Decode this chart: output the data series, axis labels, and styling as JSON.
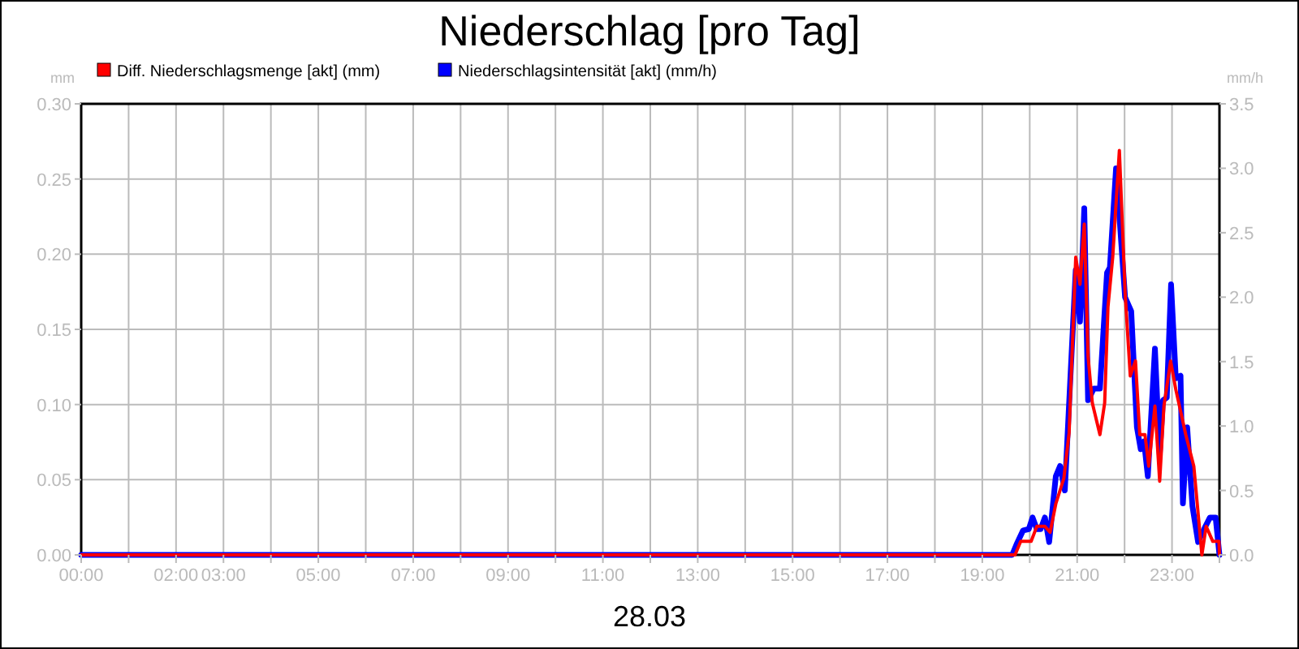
{
  "chart_data": {
    "type": "line",
    "title": "Niederschlag [pro Tag]",
    "ylabel": "mm",
    "y2label": "mm/h",
    "annotations": [
      "28.03"
    ],
    "xlim": [
      0,
      24
    ],
    "xticks": [
      {
        "value": 0,
        "label": "00:00"
      },
      {
        "value": 1,
        "label": null
      },
      {
        "value": 2,
        "label": "02:00"
      },
      {
        "value": 3,
        "label": "03:00"
      },
      {
        "value": 4,
        "label": null
      },
      {
        "value": 5,
        "label": "05:00"
      },
      {
        "value": 6,
        "label": null
      },
      {
        "value": 7,
        "label": "07:00"
      },
      {
        "value": 8,
        "label": null
      },
      {
        "value": 9,
        "label": "09:00"
      },
      {
        "value": 10,
        "label": null
      },
      {
        "value": 11,
        "label": "11:00"
      },
      {
        "value": 12,
        "label": null
      },
      {
        "value": 13,
        "label": "13:00"
      },
      {
        "value": 14,
        "label": null
      },
      {
        "value": 15,
        "label": "15:00"
      },
      {
        "value": 16,
        "label": null
      },
      {
        "value": 17,
        "label": "17:00"
      },
      {
        "value": 18,
        "label": null
      },
      {
        "value": 19,
        "label": "19:00"
      },
      {
        "value": 20,
        "label": null
      },
      {
        "value": 21,
        "label": "21:00"
      },
      {
        "value": 22,
        "label": null
      },
      {
        "value": 23,
        "label": "23:00"
      },
      {
        "value": 24,
        "label": null
      }
    ],
    "ylim": [
      0,
      0.3
    ],
    "yticks": [
      {
        "value": 0,
        "label": "0.00"
      },
      {
        "value": 0.05,
        "label": "0.05"
      },
      {
        "value": 0.1,
        "label": "0.10"
      },
      {
        "value": 0.15,
        "label": "0.15"
      },
      {
        "value": 0.2,
        "label": "0.20"
      },
      {
        "value": 0.25,
        "label": "0.25"
      },
      {
        "value": 0.3,
        "label": "0.30"
      }
    ],
    "y2lim": [
      0,
      3.5
    ],
    "y2ticks": [
      {
        "value": 0,
        "label": "0.0"
      },
      {
        "value": 0.5,
        "label": "0.5"
      },
      {
        "value": 1,
        "label": "1.0"
      },
      {
        "value": 1.5,
        "label": "1.5"
      },
      {
        "value": 2,
        "label": "2.0"
      },
      {
        "value": 2.5,
        "label": "2.5"
      },
      {
        "value": 3,
        "label": "3.0"
      },
      {
        "value": 3.5,
        "label": "3.5"
      }
    ],
    "grid": true,
    "legend": "top left",
    "marker": "none",
    "line_style": "solid",
    "series": [
      {
        "name": "Diff. Niederschlagsmenge [akt] (mm)",
        "color": "#ff0000",
        "x": [
          0,
          19.69,
          19.81,
          20.03,
          20.15,
          20.32,
          20.43,
          20.55,
          20.72,
          20.83,
          20.97,
          21.06,
          21.15,
          21.23,
          21.32,
          21.48,
          21.58,
          21.65,
          21.75,
          21.89,
          22.01,
          22.12,
          22.23,
          22.32,
          22.43,
          22.51,
          22.64,
          22.74,
          22.83,
          22.97,
          23.08,
          23.29,
          23.46,
          23.63,
          23.72,
          23.86,
          23.99,
          24
        ],
        "values": [
          0,
          0,
          0.009,
          0.009,
          0.019,
          0.019,
          0.015,
          0.034,
          0.051,
          0.081,
          0.198,
          0.18,
          0.22,
          0.132,
          0.101,
          0.08,
          0.101,
          0.165,
          0.198,
          0.269,
          0.175,
          0.119,
          0.129,
          0.08,
          0.08,
          0.059,
          0.099,
          0.049,
          0.099,
          0.129,
          0.11,
          0.08,
          0.059,
          0,
          0.019,
          0.009,
          0.009,
          0
        ]
      },
      {
        "name": "Niederschlagsintensität [akt] (mm/h)",
        "color": "#0000ff",
        "axis": "y2",
        "x": [
          0,
          19.63,
          19.72,
          19.86,
          19.98,
          20.06,
          20.15,
          20.23,
          20.32,
          20.41,
          20.55,
          20.64,
          20.74,
          20.87,
          20.97,
          21.06,
          21.15,
          21.23,
          21.35,
          21.48,
          21.63,
          21.69,
          21.82,
          22.01,
          22.14,
          22.26,
          22.34,
          22.41,
          22.49,
          22.64,
          22.74,
          22.81,
          22.89,
          22.98,
          23.08,
          23.18,
          23.23,
          23.32,
          23.43,
          23.55,
          23.69,
          23.8,
          23.92,
          24
        ],
        "values": [
          0,
          0,
          0.08,
          0.19,
          0.2,
          0.29,
          0.2,
          0.2,
          0.29,
          0.1,
          0.61,
          0.69,
          0.5,
          1.47,
          2.21,
          1.81,
          2.69,
          1.2,
          1.29,
          1.29,
          2.19,
          2.23,
          3.0,
          2.0,
          1.89,
          0.99,
          0.82,
          0.88,
          0.61,
          1.6,
          0.78,
          1.2,
          1.22,
          2.1,
          1.37,
          1.39,
          0.4,
          0.99,
          0.38,
          0.1,
          0.21,
          0.29,
          0.29,
          0
        ]
      }
    ]
  }
}
